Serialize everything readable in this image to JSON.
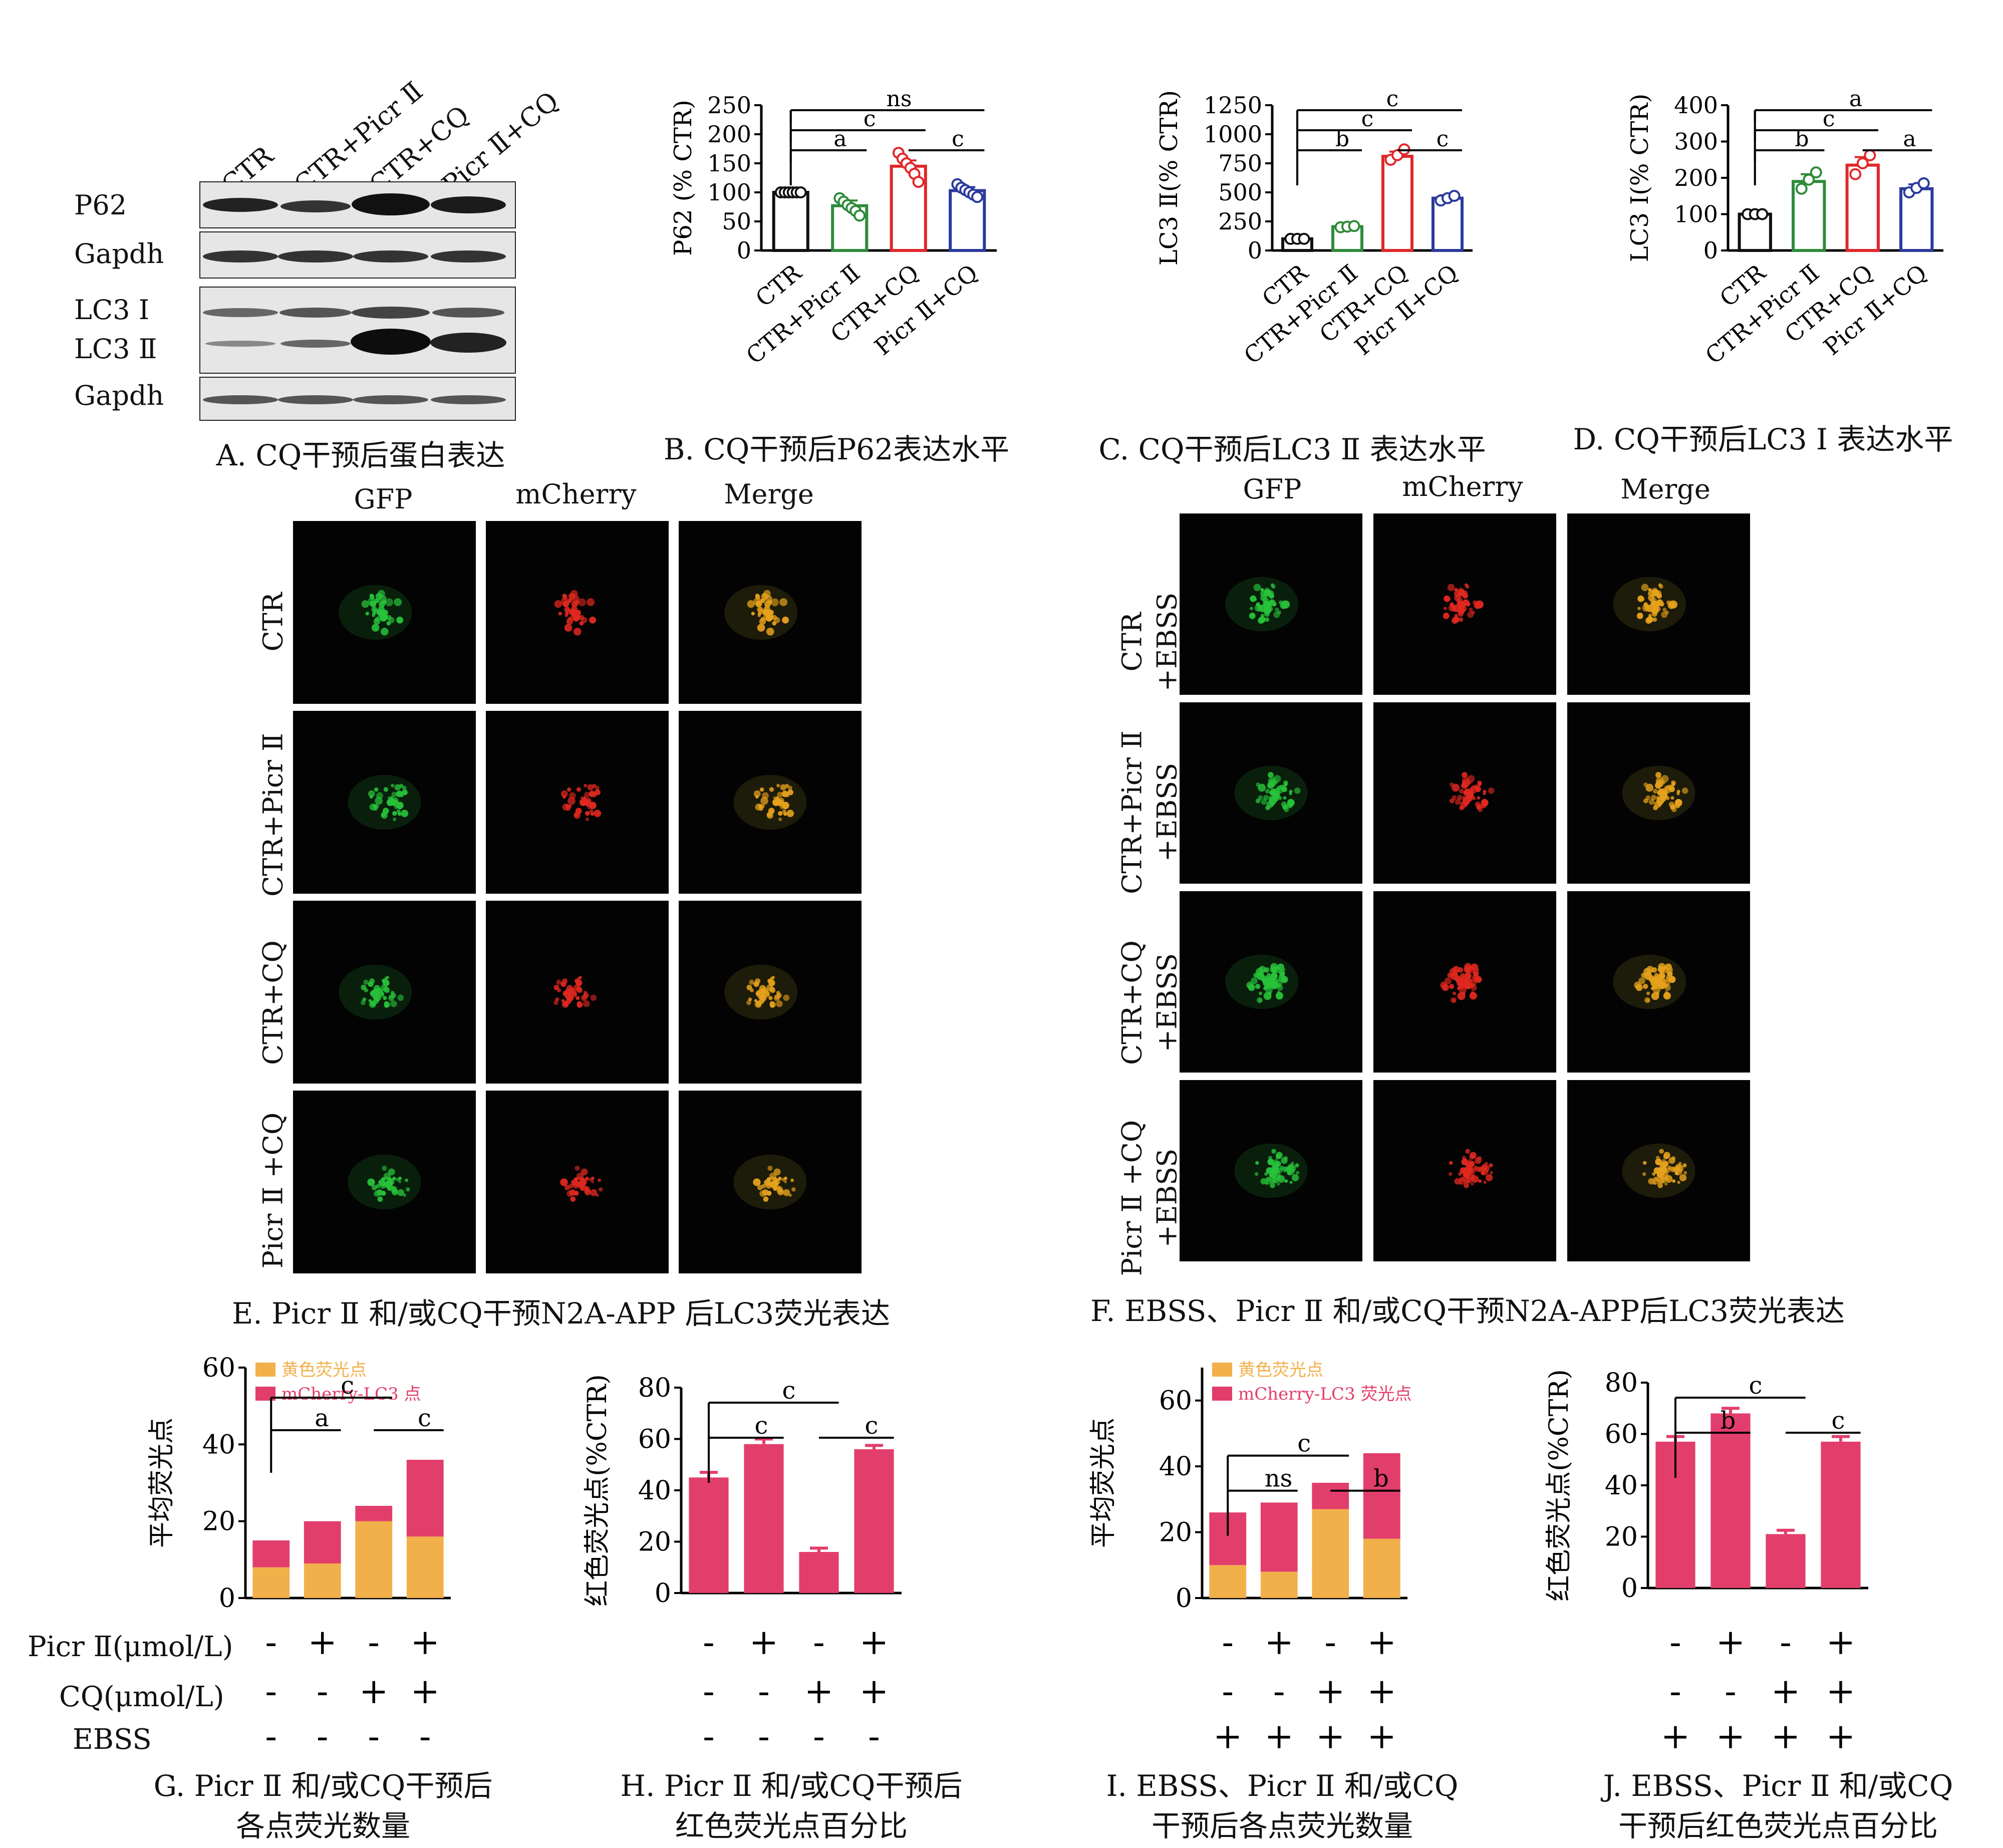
{
  "panelA": {
    "lanes": [
      "CTR",
      "CTR+Picr Ⅱ",
      "CTR+CQ",
      "Picr Ⅱ+CQ"
    ],
    "rows": [
      "P62",
      "Gapdh",
      "LC3 Ⅰ",
      "LC3 Ⅱ",
      "Gapdh"
    ],
    "caption": "A. CQ干预后蛋白表达"
  },
  "chart_data": [
    {
      "id": "B",
      "type": "bar",
      "caption": "B. CQ干预后P62表达水平",
      "ylabel": "P62 (% CTR)",
      "ylim": [
        0,
        250
      ],
      "yticks": [
        0,
        50,
        100,
        150,
        200,
        250
      ],
      "categories": [
        "CTR",
        "CTR+Picr Ⅱ",
        "CTR+CQ",
        "Picr Ⅱ+CQ"
      ],
      "values": [
        100,
        77,
        145,
        103
      ],
      "errors": [
        2,
        9,
        10,
        6
      ],
      "points": [
        [
          100,
          100,
          100,
          100,
          100,
          100
        ],
        [
          90,
          84,
          78,
          73,
          68,
          60
        ],
        [
          168,
          158,
          150,
          142,
          132,
          118
        ],
        [
          114,
          108,
          104,
          100,
          96,
          92
        ]
      ],
      "colors": [
        "#111111",
        "#2e8b3a",
        "#e0272a",
        "#2a3a9c"
      ],
      "annotations": [
        {
          "label": "ns",
          "from": 0,
          "to": 3,
          "level": 3
        },
        {
          "label": "c",
          "from": 0,
          "to": 2,
          "level": 2
        },
        {
          "label": "a",
          "from": 0,
          "to": 1,
          "level": 1
        },
        {
          "label": "c",
          "from": 2,
          "to": 3,
          "level": 1
        }
      ]
    },
    {
      "id": "C",
      "type": "bar",
      "caption": "C. CQ干预后LC3 Ⅱ 表达水平",
      "ylabel": "LC3 Ⅱ(% CTR)",
      "ylim": [
        0,
        1250
      ],
      "yticks": [
        0,
        250,
        500,
        750,
        1000,
        1250
      ],
      "categories": [
        "CTR",
        "CTR+Picr Ⅱ",
        "CTR+CQ",
        "Picr Ⅱ+CQ"
      ],
      "values": [
        100,
        205,
        810,
        450
      ],
      "errors": [
        5,
        15,
        40,
        25
      ],
      "points": [
        [
          100,
          100,
          100
        ],
        [
          200,
          205,
          210
        ],
        [
          780,
          820,
          870
        ],
        [
          430,
          450,
          470
        ]
      ],
      "colors": [
        "#111111",
        "#2e8b3a",
        "#e0272a",
        "#2a3a9c"
      ],
      "annotations": [
        {
          "label": "c",
          "from": 0,
          "to": 3,
          "level": 3
        },
        {
          "label": "c",
          "from": 0,
          "to": 2,
          "level": 2
        },
        {
          "label": "b",
          "from": 0,
          "to": 1,
          "level": 1
        },
        {
          "label": "c",
          "from": 2,
          "to": 3,
          "level": 1
        }
      ]
    },
    {
      "id": "D",
      "type": "bar",
      "caption": "D. CQ干预后LC3 Ⅰ 表达水平",
      "ylabel": "LC3 Ⅰ(% CTR)",
      "ylim": [
        0,
        400
      ],
      "yticks": [
        0,
        100,
        200,
        300,
        400
      ],
      "categories": [
        "CTR",
        "CTR+Picr Ⅱ",
        "CTR+CQ",
        "Picr Ⅱ+CQ"
      ],
      "values": [
        100,
        190,
        235,
        170
      ],
      "errors": [
        2,
        20,
        22,
        12
      ],
      "points": [
        [
          100,
          100,
          100
        ],
        [
          170,
          195,
          215
        ],
        [
          210,
          240,
          262
        ],
        [
          160,
          172,
          185
        ]
      ],
      "colors": [
        "#111111",
        "#2e8b3a",
        "#e0272a",
        "#2a3a9c"
      ],
      "annotations": [
        {
          "label": "a",
          "from": 0,
          "to": 3,
          "level": 3
        },
        {
          "label": "c",
          "from": 0,
          "to": 2,
          "level": 2
        },
        {
          "label": "b",
          "from": 0,
          "to": 1,
          "level": 1
        },
        {
          "label": "a",
          "from": 2,
          "to": 3,
          "level": 1
        }
      ]
    },
    {
      "id": "G",
      "type": "bar",
      "stacked": true,
      "caption": [
        "G. Picr Ⅱ 和/或CQ干预后",
        "各点荧光数量"
      ],
      "ylabel": "平均荧光点",
      "ylim": [
        0,
        60
      ],
      "yticks": [
        0,
        20,
        40,
        60
      ],
      "series": [
        {
          "name": "黄色荧光点",
          "color": "#f2b04a",
          "values": [
            8,
            9,
            20,
            16
          ]
        },
        {
          "name": "mCherry-LC3 点",
          "color": "#e23e6b",
          "values": [
            7,
            11,
            4,
            20
          ]
        }
      ],
      "annotations": [
        {
          "label": "c",
          "from": 0,
          "to": 2,
          "level": 2
        },
        {
          "label": "a",
          "from": 0,
          "to": 1,
          "level": 1
        },
        {
          "label": "c",
          "from": 2,
          "to": 3,
          "level": 1
        }
      ]
    },
    {
      "id": "H",
      "type": "bar",
      "caption": [
        "H. Picr Ⅱ 和/或CQ干预后",
        "红色荧光点百分比"
      ],
      "ylabel": "红色荧光点(%CTR)",
      "ylim": [
        0,
        80
      ],
      "yticks": [
        0,
        20,
        40,
        60,
        80
      ],
      "values": [
        45,
        58,
        16,
        56
      ],
      "errors": [
        2,
        2,
        1.5,
        1.5
      ],
      "colors": [
        "#e23e6b",
        "#e23e6b",
        "#e23e6b",
        "#e23e6b"
      ],
      "annotations": [
        {
          "label": "c",
          "from": 0,
          "to": 2,
          "level": 2
        },
        {
          "label": "c",
          "from": 0,
          "to": 1,
          "level": 1
        },
        {
          "label": "c",
          "from": 2,
          "to": 3,
          "level": 1
        }
      ]
    },
    {
      "id": "I",
      "type": "bar",
      "stacked": true,
      "caption": [
        "I. EBSS、Picr Ⅱ 和/或CQ",
        "干预后各点荧光数量"
      ],
      "ylabel": "平均荧光点",
      "ylim": [
        0,
        70
      ],
      "yticks": [
        0,
        20,
        40,
        60
      ],
      "series": [
        {
          "name": "黄色荧光点",
          "color": "#f2b04a",
          "values": [
            10,
            8,
            27,
            18
          ]
        },
        {
          "name": "mCherry-LC3 荧光点",
          "color": "#e23e6b",
          "values": [
            16,
            21,
            8,
            26
          ]
        }
      ],
      "annotations": [
        {
          "label": "c",
          "from": 0,
          "to": 2,
          "level": 2
        },
        {
          "label": "ns",
          "from": 0,
          "to": 1,
          "level": 1
        },
        {
          "label": "b",
          "from": 2,
          "to": 3,
          "level": 1
        }
      ]
    },
    {
      "id": "J",
      "type": "bar",
      "caption": [
        "J. EBSS、Picr Ⅱ 和/或CQ",
        "干预后红色荧光点百分比"
      ],
      "ylabel": "红色荧光点(%CTR)",
      "ylim": [
        0,
        80
      ],
      "yticks": [
        0,
        20,
        40,
        60,
        80
      ],
      "values": [
        57,
        68,
        21,
        57
      ],
      "errors": [
        2,
        2,
        1.5,
        2
      ],
      "colors": [
        "#e23e6b",
        "#e23e6b",
        "#e23e6b",
        "#e23e6b"
      ],
      "annotations": [
        {
          "label": "c",
          "from": 0,
          "to": 2,
          "level": 2
        },
        {
          "label": "b",
          "from": 0,
          "to": 1,
          "level": 1
        },
        {
          "label": "c",
          "from": 2,
          "to": 3,
          "level": 1
        }
      ]
    }
  ],
  "panelE": {
    "columns": [
      "GFP",
      "mCherry",
      "Merge"
    ],
    "rows": [
      "CTR",
      "CTR+Picr Ⅱ",
      "CTR+CQ",
      "Picr Ⅱ +CQ"
    ],
    "caption": "E. Picr Ⅱ 和/或CQ干预N2A-APP 后LC3荧光表达"
  },
  "panelF": {
    "columns": [
      "GFP",
      "mCherry",
      "Merge"
    ],
    "rows": [
      [
        "CTR",
        "+EBSS"
      ],
      [
        "CTR+Picr Ⅱ",
        "+EBSS"
      ],
      [
        "CTR+CQ",
        "+EBSS"
      ],
      [
        "Picr Ⅱ +CQ",
        "+EBSS"
      ]
    ],
    "caption": "F. EBSS、Picr Ⅱ 和/或CQ干预N2A-APP后LC3荧光表达"
  },
  "conditionTable": {
    "labels": [
      "Picr Ⅱ(μmol/L)",
      "CQ(μmol/L)",
      "EBSS"
    ],
    "GH": [
      [
        "-",
        "+",
        "-",
        "+"
      ],
      [
        "-",
        "-",
        "+",
        "+"
      ],
      [
        "-",
        "-",
        "-",
        "-"
      ]
    ],
    "IJ": [
      [
        "-",
        "+",
        "-",
        "+"
      ],
      [
        "-",
        "-",
        "+",
        "+"
      ],
      [
        "+",
        "+",
        "+",
        "+"
      ]
    ]
  }
}
